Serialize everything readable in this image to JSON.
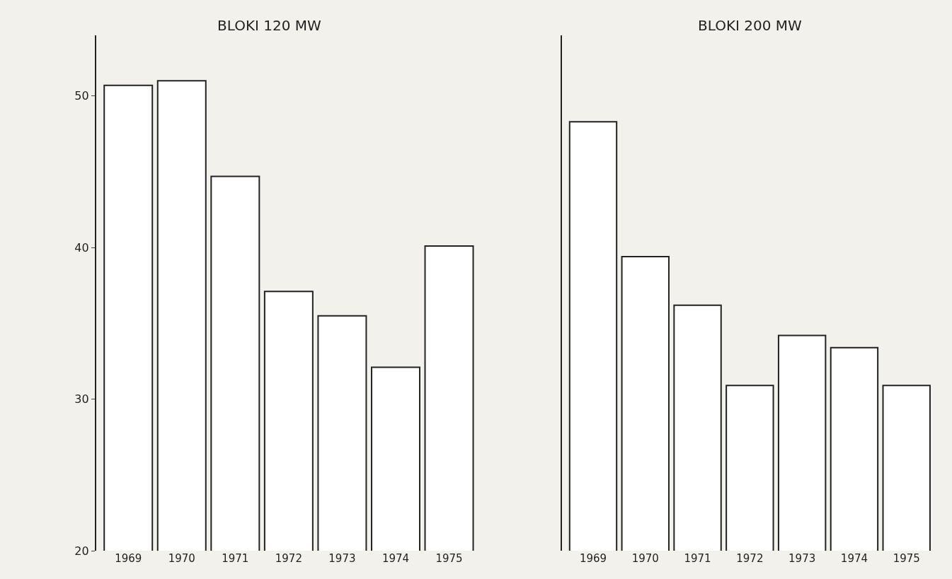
{
  "chart_data": [
    {
      "type": "bar",
      "title": "BLOKI 120 MW",
      "categories": [
        "1969",
        "1970",
        "1971",
        "1972",
        "1973",
        "1974",
        "1975"
      ],
      "values": [
        50.7,
        51.0,
        44.7,
        37.1,
        35.5,
        32.1,
        40.1
      ],
      "color": "#ffffff",
      "ylim": [
        20,
        54
      ],
      "yticks": [
        20,
        30,
        40,
        50
      ],
      "grid": false
    },
    {
      "type": "bar",
      "title": "BLOKI 200 MW",
      "categories": [
        "1969",
        "1970",
        "1971",
        "1972",
        "1973",
        "1974",
        "1975"
      ],
      "values": [
        48.3,
        39.4,
        36.2,
        30.9,
        34.2,
        33.4,
        30.9
      ],
      "color": "#ffffff",
      "ylim": [
        20,
        54
      ],
      "yticks": [
        20,
        30,
        40,
        50
      ],
      "grid": false,
      "tick_labels": "x"
    }
  ]
}
